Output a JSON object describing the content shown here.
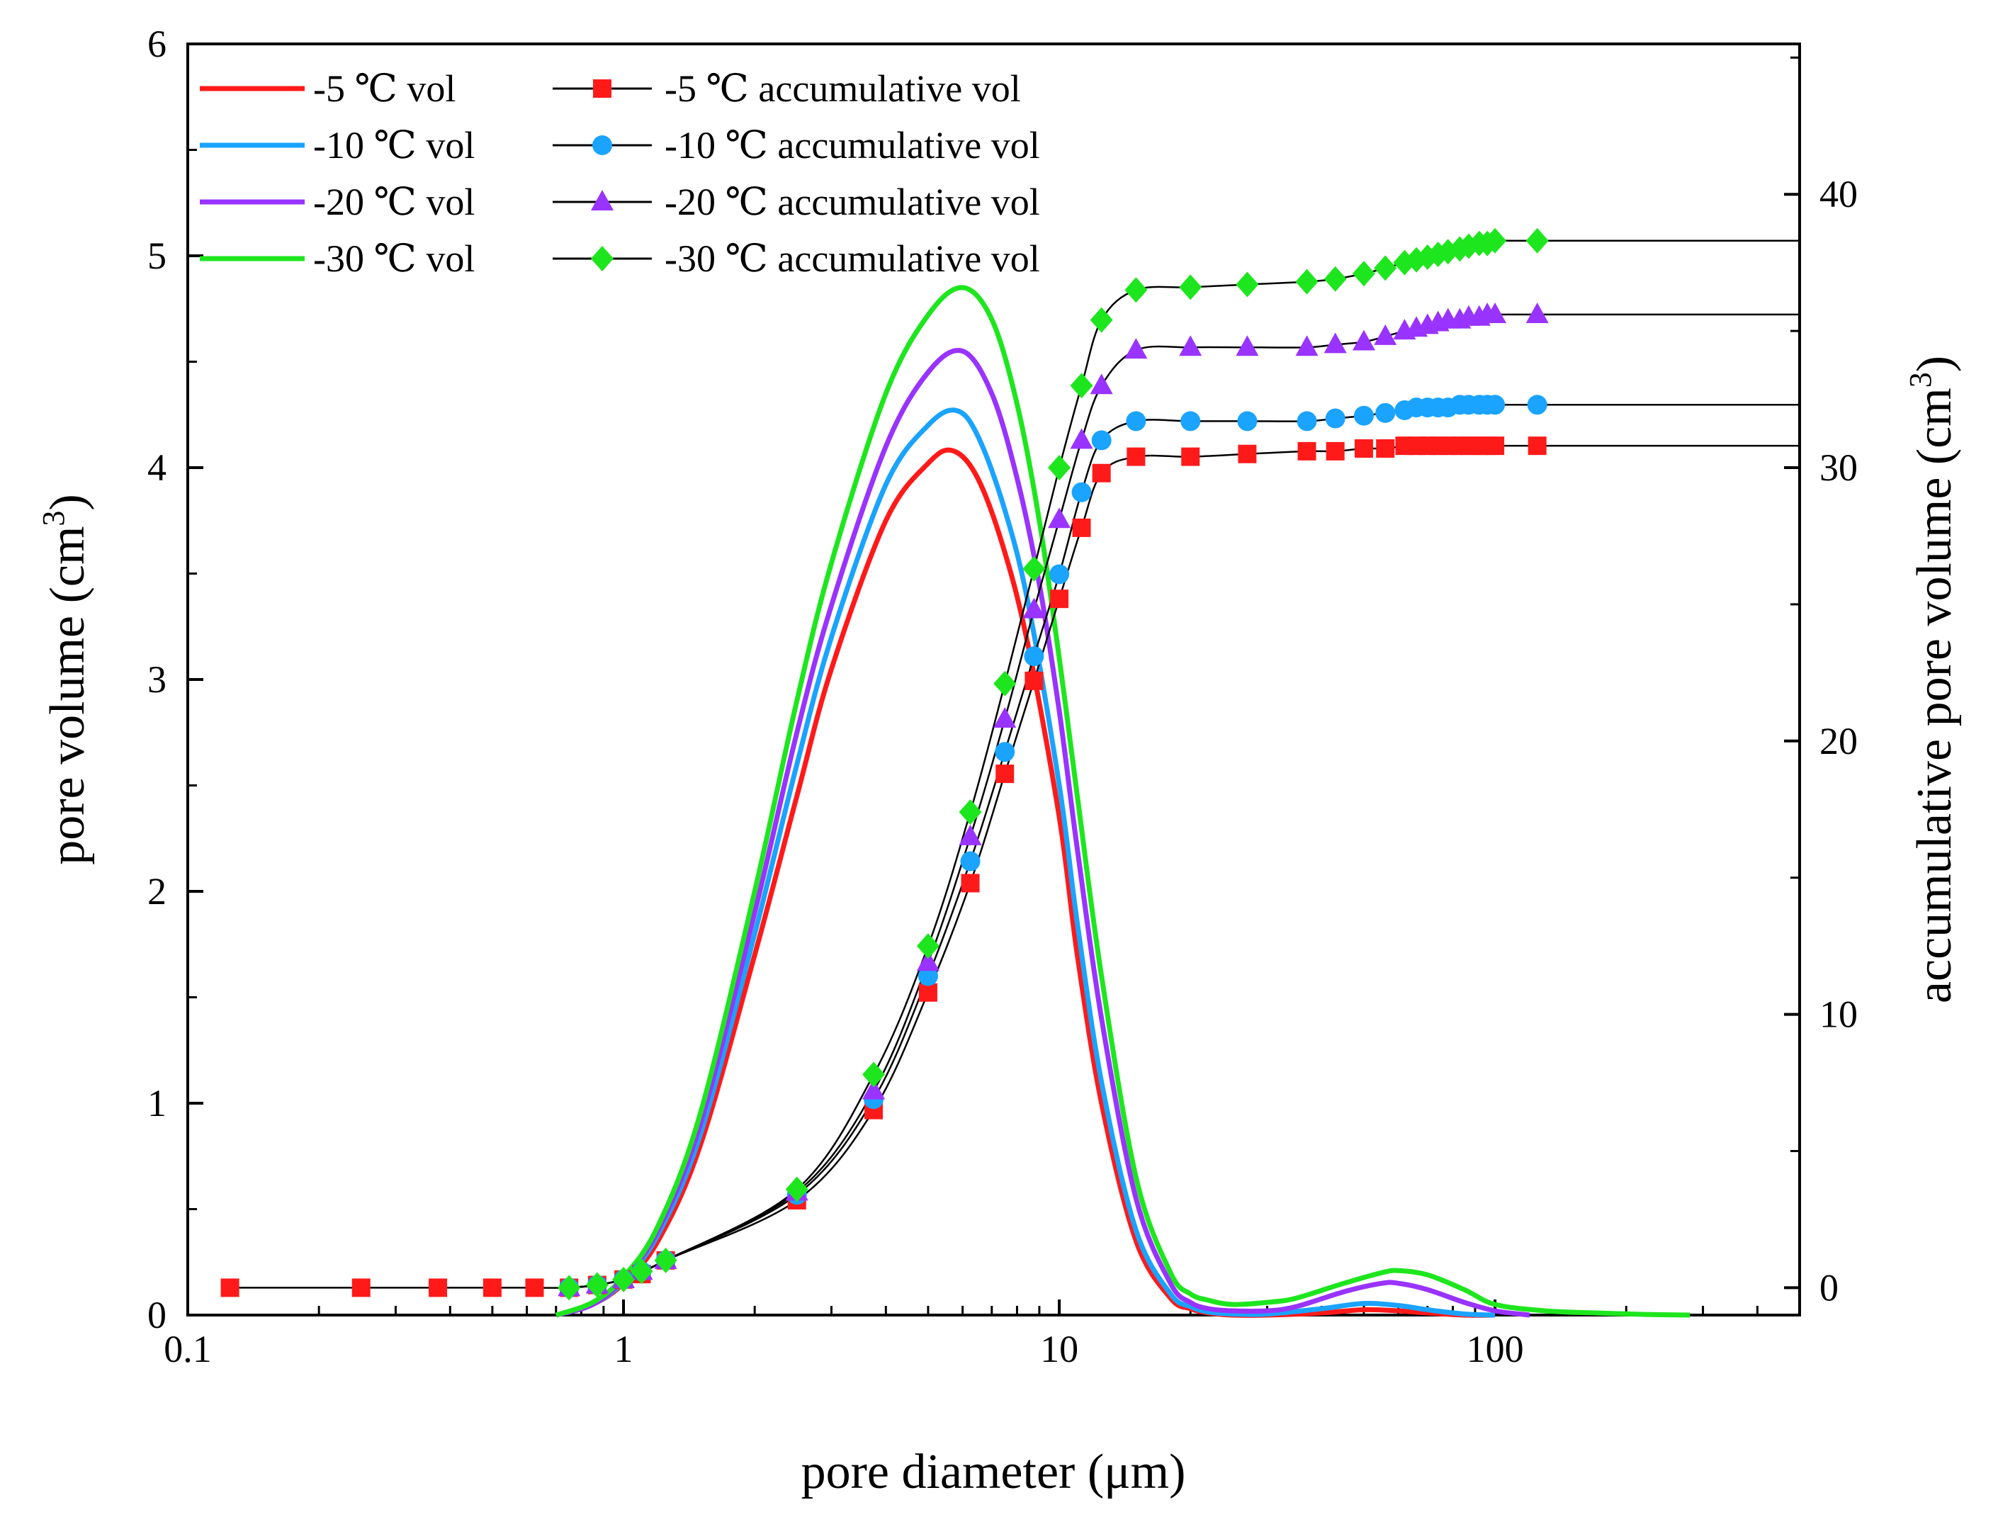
{
  "chart_data": {
    "type": "line",
    "xlabel": "pore diameter (μm)",
    "ylabel": "pore volume (cm",
    "y2label": "accumulative pore volume (cm",
    "unit_superscript": "3",
    "unit_close": ")",
    "x_scale": "log",
    "xlim": [
      0.1,
      500
    ],
    "ylim": [
      0,
      6
    ],
    "y2lim": [
      -1,
      45.5
    ],
    "x_ticks": [
      0.1,
      1,
      10,
      100
    ],
    "x_tick_labels": [
      "0.1",
      "1",
      "10",
      "100"
    ],
    "y_ticks": [
      0,
      1,
      2,
      3,
      4,
      5,
      6
    ],
    "y_tick_labels": [
      "0",
      "1",
      "2",
      "3",
      "4",
      "5",
      "6"
    ],
    "y2_ticks": [
      0,
      10,
      20,
      30,
      40
    ],
    "y2_tick_labels": [
      "0",
      "10",
      "20",
      "30",
      "40"
    ],
    "legend_position": "top-left",
    "series": [
      {
        "name": "-5 ℃ vol",
        "color": "#ff1a1a",
        "type": "line",
        "axis": "left",
        "x": [
          0.7,
          0.85,
          1,
          1.2,
          1.5,
          2,
          2.5,
          3,
          4,
          5,
          5.7,
          6.5,
          7.5,
          8.5,
          10,
          11,
          12.5,
          15,
          18,
          20,
          22,
          25,
          30,
          40,
          50,
          60,
          70,
          85,
          100
        ],
        "values": [
          0,
          0.05,
          0.15,
          0.35,
          0.8,
          1.7,
          2.45,
          3.05,
          3.75,
          4.02,
          4.08,
          3.95,
          3.6,
          3.15,
          2.35,
          1.7,
          1.0,
          0.35,
          0.08,
          0.03,
          0.01,
          0,
          0,
          0.01,
          0.025,
          0.02,
          0.01,
          0,
          0
        ]
      },
      {
        "name": "-10 ℃ vol",
        "color": "#1aa3ff",
        "type": "line",
        "axis": "left",
        "x": [
          0.7,
          0.85,
          1,
          1.2,
          1.5,
          2,
          2.5,
          3,
          4,
          5,
          5.8,
          6.5,
          7.5,
          8.5,
          10,
          11,
          12.5,
          15,
          18,
          20,
          22,
          25,
          30,
          40,
          50,
          60,
          70,
          85,
          100
        ],
        "values": [
          0,
          0.05,
          0.16,
          0.38,
          0.85,
          1.8,
          2.6,
          3.2,
          3.92,
          4.2,
          4.27,
          4.15,
          3.8,
          3.35,
          2.5,
          1.85,
          1.1,
          0.4,
          0.1,
          0.04,
          0.015,
          0.005,
          0.005,
          0.03,
          0.055,
          0.045,
          0.025,
          0.005,
          0
        ]
      },
      {
        "name": "-20 ℃ vol",
        "color": "#9933ff",
        "type": "line",
        "axis": "left",
        "x": [
          0.7,
          0.85,
          1,
          1.2,
          1.5,
          2,
          2.5,
          3,
          4,
          5,
          6,
          7,
          8,
          9,
          10,
          11,
          12.5,
          15,
          18,
          20,
          22,
          25,
          30,
          35,
          45,
          55,
          60,
          70,
          85,
          100,
          120
        ],
        "values": [
          0,
          0.05,
          0.17,
          0.4,
          0.9,
          1.9,
          2.75,
          3.35,
          4.1,
          4.45,
          4.55,
          4.35,
          3.95,
          3.45,
          2.85,
          2.2,
          1.4,
          0.55,
          0.15,
          0.06,
          0.03,
          0.02,
          0.02,
          0.04,
          0.11,
          0.15,
          0.15,
          0.12,
          0.06,
          0.02,
          0
        ]
      },
      {
        "name": "-30 ℃ vol",
        "color": "#1ee61e",
        "type": "line",
        "axis": "left",
        "x": [
          0.7,
          0.85,
          1,
          1.2,
          1.5,
          2,
          2.5,
          3,
          4,
          5,
          6,
          7,
          8,
          9,
          10,
          11,
          12.5,
          15,
          18,
          20,
          22,
          25,
          30,
          35,
          45,
          55,
          60,
          70,
          85,
          100,
          130,
          170,
          220,
          280
        ],
        "values": [
          0,
          0.06,
          0.18,
          0.42,
          0.95,
          2.0,
          2.9,
          3.55,
          4.35,
          4.72,
          4.85,
          4.7,
          4.3,
          3.75,
          3.1,
          2.45,
          1.6,
          0.65,
          0.2,
          0.1,
          0.07,
          0.05,
          0.06,
          0.08,
          0.15,
          0.2,
          0.21,
          0.19,
          0.12,
          0.05,
          0.02,
          0.01,
          0.003,
          0
        ]
      },
      {
        "name": "-5 ℃ accumulative vol",
        "color": "#ff1a1a",
        "marker": "square",
        "axis": "right",
        "x": [
          0.125,
          0.25,
          0.375,
          0.5,
          0.625,
          0.75,
          0.87,
          1.0,
          1.1,
          1.25,
          2.5,
          3.75,
          5.0,
          6.25,
          7.5,
          8.75,
          10,
          11.25,
          12.5,
          15,
          20,
          27,
          37,
          43,
          50,
          56,
          62,
          66,
          70,
          74,
          78,
          83,
          87,
          92,
          96,
          100,
          125
        ],
        "values": [
          0,
          0,
          0,
          0,
          0,
          0,
          0.1,
          0.3,
          0.5,
          1.0,
          3.2,
          6.5,
          10.8,
          14.8,
          18.8,
          22.2,
          25.2,
          27.8,
          29.8,
          30.4,
          30.4,
          30.5,
          30.6,
          30.6,
          30.7,
          30.7,
          30.8,
          30.8,
          30.8,
          30.8,
          30.8,
          30.8,
          30.8,
          30.8,
          30.8,
          30.8,
          30.8
        ]
      },
      {
        "name": "-10 ℃ accumulative vol",
        "color": "#1aa3ff",
        "marker": "circle",
        "axis": "right",
        "x": [
          0.75,
          0.87,
          1.0,
          1.1,
          1.25,
          2.5,
          3.75,
          5.0,
          6.25,
          7.5,
          8.75,
          10,
          11.25,
          12.5,
          15,
          20,
          27,
          37,
          43,
          50,
          56,
          62,
          66,
          70,
          74,
          78,
          83,
          87,
          92,
          96,
          100,
          125
        ],
        "values": [
          0,
          0.1,
          0.3,
          0.6,
          1.0,
          3.4,
          6.9,
          11.4,
          15.6,
          19.6,
          23.1,
          26.1,
          29.1,
          31.0,
          31.7,
          31.7,
          31.7,
          31.7,
          31.8,
          31.9,
          32.0,
          32.1,
          32.2,
          32.2,
          32.2,
          32.2,
          32.3,
          32.3,
          32.3,
          32.3,
          32.3,
          32.3
        ]
      },
      {
        "name": "-20 ℃ accumulative vol",
        "color": "#9933ff",
        "marker": "triangle",
        "axis": "right",
        "x": [
          0.75,
          0.87,
          1.0,
          1.1,
          1.25,
          2.5,
          3.75,
          5.0,
          6.25,
          7.5,
          8.75,
          10,
          11.25,
          12.5,
          15,
          20,
          27,
          37,
          43,
          50,
          56,
          62,
          66,
          70,
          74,
          78,
          83,
          87,
          92,
          96,
          100,
          125
        ],
        "values": [
          0,
          0.1,
          0.3,
          0.6,
          1.0,
          3.5,
          7.2,
          11.9,
          16.5,
          20.8,
          24.8,
          28.1,
          31.0,
          33.0,
          34.3,
          34.4,
          34.4,
          34.4,
          34.5,
          34.6,
          34.8,
          35.0,
          35.1,
          35.2,
          35.3,
          35.4,
          35.4,
          35.5,
          35.5,
          35.6,
          35.6,
          35.6
        ]
      },
      {
        "name": "-30 ℃ accumulative vol",
        "color": "#1ee61e",
        "marker": "diamond",
        "axis": "right",
        "x": [
          0.75,
          0.87,
          1.0,
          1.1,
          1.25,
          2.5,
          3.75,
          5.0,
          6.25,
          7.5,
          8.75,
          10,
          11.25,
          12.5,
          15,
          20,
          27,
          37,
          43,
          50,
          56,
          62,
          66,
          70,
          74,
          78,
          83,
          87,
          92,
          96,
          100,
          125
        ],
        "values": [
          0,
          0.1,
          0.3,
          0.6,
          1.0,
          3.6,
          7.8,
          12.5,
          17.4,
          22.1,
          26.3,
          30.0,
          33.0,
          35.4,
          36.5,
          36.6,
          36.7,
          36.8,
          36.9,
          37.1,
          37.3,
          37.5,
          37.6,
          37.7,
          37.8,
          37.9,
          38.0,
          38.1,
          38.2,
          38.2,
          38.3,
          38.3
        ]
      }
    ]
  }
}
